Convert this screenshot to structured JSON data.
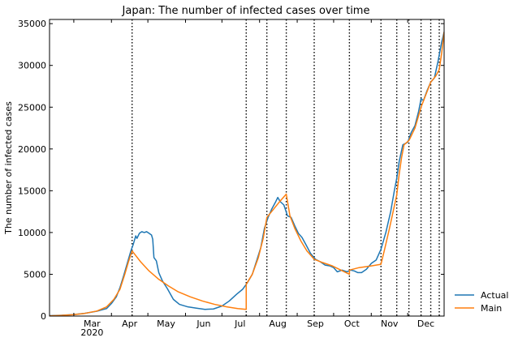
{
  "chart_data": {
    "type": "line",
    "title": "Japan: The number of infected cases over time",
    "xlabel": "",
    "ylabel": "The number of infected cases",
    "x_range": [
      "2020-02-10",
      "2020-12-31"
    ],
    "ylim": [
      0,
      35500
    ],
    "y_ticks": [
      0,
      5000,
      10000,
      15000,
      20000,
      25000,
      30000,
      35000
    ],
    "y_tick_labels": [
      "0",
      "5000",
      "10000",
      "15000",
      "20000",
      "25000",
      "30000",
      "35000"
    ],
    "x_ticks": [
      {
        "date": "2020-03-01",
        "label": "Mar",
        "sublabel": "2020"
      },
      {
        "date": "2020-04-01",
        "label": "Apr",
        "sublabel": ""
      },
      {
        "date": "2020-05-01",
        "label": "May",
        "sublabel": ""
      },
      {
        "date": "2020-06-01",
        "label": "Jun",
        "sublabel": ""
      },
      {
        "date": "2020-07-01",
        "label": "Jul",
        "sublabel": ""
      },
      {
        "date": "2020-08-01",
        "label": "Aug",
        "sublabel": ""
      },
      {
        "date": "2020-09-01",
        "label": "Sep",
        "sublabel": ""
      },
      {
        "date": "2020-10-01",
        "label": "Oct",
        "sublabel": ""
      },
      {
        "date": "2020-11-01",
        "label": "Nov",
        "sublabel": ""
      },
      {
        "date": "2020-12-01",
        "label": "Dec",
        "sublabel": ""
      }
    ],
    "change_points": [
      "2020-04-18",
      "2020-07-21",
      "2020-08-07",
      "2020-08-23",
      "2020-09-15",
      "2020-10-14",
      "2020-11-09",
      "2020-11-22",
      "2020-12-02",
      "2020-12-12",
      "2020-12-20",
      "2020-12-27"
    ],
    "legend_position": "outside-right-bottom",
    "grid": false,
    "series": [
      {
        "name": "Actual",
        "color": "#1f77b4",
        "points": [
          [
            "2020-02-10",
            50
          ],
          [
            "2020-02-20",
            100
          ],
          [
            "2020-03-01",
            180
          ],
          [
            "2020-03-10",
            330
          ],
          [
            "2020-03-20",
            580
          ],
          [
            "2020-03-28",
            900
          ],
          [
            "2020-04-01",
            1500
          ],
          [
            "2020-04-05",
            2300
          ],
          [
            "2020-04-08",
            3400
          ],
          [
            "2020-04-11",
            4800
          ],
          [
            "2020-04-14",
            6300
          ],
          [
            "2020-04-17",
            7800
          ],
          [
            "2020-04-19",
            8600
          ],
          [
            "2020-04-21",
            9600
          ],
          [
            "2020-04-22",
            9300
          ],
          [
            "2020-04-24",
            9900
          ],
          [
            "2020-04-26",
            10100
          ],
          [
            "2020-04-28",
            10000
          ],
          [
            "2020-04-30",
            10100
          ],
          [
            "2020-05-02",
            9900
          ],
          [
            "2020-05-04",
            9700
          ],
          [
            "2020-05-05",
            9200
          ],
          [
            "2020-05-06",
            7000
          ],
          [
            "2020-05-08",
            6600
          ],
          [
            "2020-05-10",
            5200
          ],
          [
            "2020-05-13",
            4200
          ],
          [
            "2020-05-17",
            3300
          ],
          [
            "2020-05-22",
            2000
          ],
          [
            "2020-05-27",
            1400
          ],
          [
            "2020-06-03",
            1100
          ],
          [
            "2020-06-10",
            950
          ],
          [
            "2020-06-17",
            800
          ],
          [
            "2020-06-24",
            850
          ],
          [
            "2020-07-01",
            1200
          ],
          [
            "2020-07-07",
            1800
          ],
          [
            "2020-07-13",
            2600
          ],
          [
            "2020-07-18",
            3200
          ],
          [
            "2020-07-22",
            4000
          ],
          [
            "2020-07-26",
            5000
          ],
          [
            "2020-07-30",
            6800
          ],
          [
            "2020-08-02",
            8200
          ],
          [
            "2020-08-05",
            10500
          ],
          [
            "2020-08-08",
            11800
          ],
          [
            "2020-08-11",
            12800
          ],
          [
            "2020-08-14",
            13600
          ],
          [
            "2020-08-16",
            14200
          ],
          [
            "2020-08-18",
            13700
          ],
          [
            "2020-08-21",
            13300
          ],
          [
            "2020-08-24",
            12000
          ],
          [
            "2020-08-27",
            11800
          ],
          [
            "2020-08-30",
            10800
          ],
          [
            "2020-09-02",
            9900
          ],
          [
            "2020-09-05",
            9400
          ],
          [
            "2020-09-08",
            8600
          ],
          [
            "2020-09-12",
            7500
          ],
          [
            "2020-09-16",
            6800
          ],
          [
            "2020-09-20",
            6500
          ],
          [
            "2020-09-24",
            6100
          ],
          [
            "2020-09-28",
            6000
          ],
          [
            "2020-10-01",
            5800
          ],
          [
            "2020-10-04",
            5300
          ],
          [
            "2020-10-08",
            5500
          ],
          [
            "2020-10-12",
            5300
          ],
          [
            "2020-10-15",
            5500
          ],
          [
            "2020-10-18",
            5400
          ],
          [
            "2020-10-21",
            5200
          ],
          [
            "2020-10-24",
            5200
          ],
          [
            "2020-10-28",
            5600
          ],
          [
            "2020-11-01",
            6300
          ],
          [
            "2020-11-05",
            6700
          ],
          [
            "2020-11-09",
            8000
          ],
          [
            "2020-11-13",
            10000
          ],
          [
            "2020-11-17",
            12500
          ],
          [
            "2020-11-20",
            15000
          ],
          [
            "2020-11-22",
            16500
          ],
          [
            "2020-11-24",
            18500
          ],
          [
            "2020-11-27",
            20500
          ],
          [
            "2020-12-01",
            20800
          ],
          [
            "2020-12-04",
            22000
          ],
          [
            "2020-12-07",
            22800
          ],
          [
            "2020-12-10",
            24500
          ],
          [
            "2020-12-12",
            26000
          ],
          [
            "2020-12-14",
            25800
          ],
          [
            "2020-12-17",
            27000
          ],
          [
            "2020-12-20",
            28000
          ],
          [
            "2020-12-23",
            28500
          ],
          [
            "2020-12-26",
            30500
          ],
          [
            "2020-12-29",
            32800
          ],
          [
            "2020-12-31",
            34000
          ]
        ]
      },
      {
        "name": "Main",
        "color": "#ff7f0e",
        "points": [
          [
            "2020-02-10",
            30
          ],
          [
            "2020-02-20",
            80
          ],
          [
            "2020-03-01",
            170
          ],
          [
            "2020-03-10",
            320
          ],
          [
            "2020-03-20",
            600
          ],
          [
            "2020-03-28",
            1100
          ],
          [
            "2020-04-03",
            2000
          ],
          [
            "2020-04-08",
            3200
          ],
          [
            "2020-04-12",
            5000
          ],
          [
            "2020-04-15",
            6500
          ],
          [
            "2020-04-18",
            7800
          ],
          [
            "2020-04-25",
            6500
          ],
          [
            "2020-05-02",
            5400
          ],
          [
            "2020-05-10",
            4400
          ],
          [
            "2020-05-18",
            3600
          ],
          [
            "2020-05-26",
            2900
          ],
          [
            "2020-06-05",
            2300
          ],
          [
            "2020-06-15",
            1800
          ],
          [
            "2020-06-25",
            1400
          ],
          [
            "2020-07-05",
            1100
          ],
          [
            "2020-07-14",
            900
          ],
          [
            "2020-07-21",
            800
          ],
          [
            "2020-07-21",
            3800
          ],
          [
            "2020-07-26",
            5000
          ],
          [
            "2020-07-31",
            7000
          ],
          [
            "2020-08-04",
            9300
          ],
          [
            "2020-08-07",
            11800
          ],
          [
            "2020-08-12",
            12700
          ],
          [
            "2020-08-17",
            13600
          ],
          [
            "2020-08-23",
            14600
          ],
          [
            "2020-08-26",
            12000
          ],
          [
            "2020-08-30",
            10500
          ],
          [
            "2020-09-04",
            9000
          ],
          [
            "2020-09-09",
            7800
          ],
          [
            "2020-09-15",
            6800
          ],
          [
            "2020-09-22",
            6400
          ],
          [
            "2020-09-30",
            6000
          ],
          [
            "2020-10-07",
            5500
          ],
          [
            "2020-10-14",
            5000
          ],
          [
            "2020-10-14",
            5500
          ],
          [
            "2020-10-22",
            5800
          ],
          [
            "2020-11-01",
            6000
          ],
          [
            "2020-11-09",
            6200
          ],
          [
            "2020-11-12",
            8000
          ],
          [
            "2020-11-16",
            10500
          ],
          [
            "2020-11-19",
            12500
          ],
          [
            "2020-11-22",
            14500
          ],
          [
            "2020-11-24",
            17000
          ],
          [
            "2020-11-26",
            19000
          ],
          [
            "2020-11-28",
            20500
          ],
          [
            "2020-12-02",
            21000
          ],
          [
            "2020-12-07",
            22500
          ],
          [
            "2020-12-12",
            25000
          ],
          [
            "2020-12-16",
            26500
          ],
          [
            "2020-12-20",
            28000
          ],
          [
            "2020-12-24",
            28700
          ],
          [
            "2020-12-27",
            29500
          ],
          [
            "2020-12-29",
            31500
          ],
          [
            "2020-12-31",
            34000
          ]
        ]
      }
    ]
  }
}
